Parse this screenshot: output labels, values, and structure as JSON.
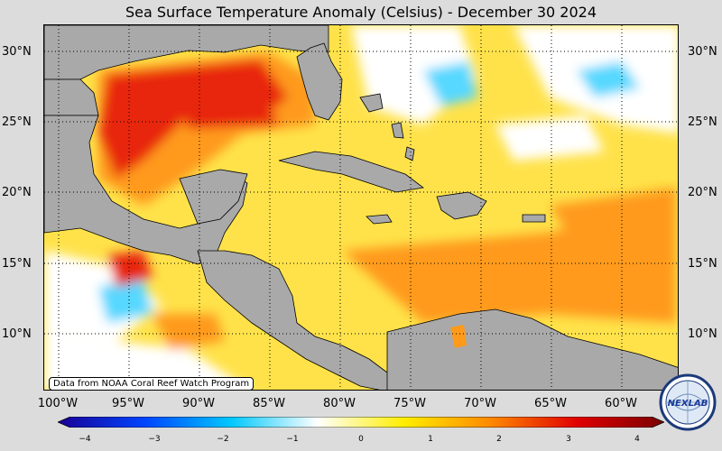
{
  "title": "Sea Surface Temperature Anomaly (Celsius) - December 30 2024",
  "credit": "Data from NOAA Coral Reef Watch Program",
  "logo_text": "NEXLAB",
  "lat_labels": [
    "30°N",
    "25°N",
    "20°N",
    "15°N",
    "10°N"
  ],
  "lon_labels": [
    "100°W",
    "95°W",
    "90°W",
    "85°W",
    "80°W",
    "75°W",
    "70°W",
    "65°W",
    "60°W"
  ],
  "colorbar": {
    "ticks": [
      "−4",
      "−3",
      "−2",
      "−1",
      "0",
      "1",
      "2",
      "3",
      "4"
    ],
    "min": -4,
    "max": 4,
    "colors": [
      "#1a0094",
      "#0044ff",
      "#00c8ff",
      "#ffffff",
      "#ffee00",
      "#ff8800",
      "#e00000",
      "#7a0000"
    ]
  },
  "colors": {
    "land": "#a9a9a9",
    "ocean_base": "#ffe24a",
    "warm": "#ff9a1a",
    "hot": "#e8250e",
    "cool": "#ffffff",
    "cold": "#56d8ff"
  }
}
